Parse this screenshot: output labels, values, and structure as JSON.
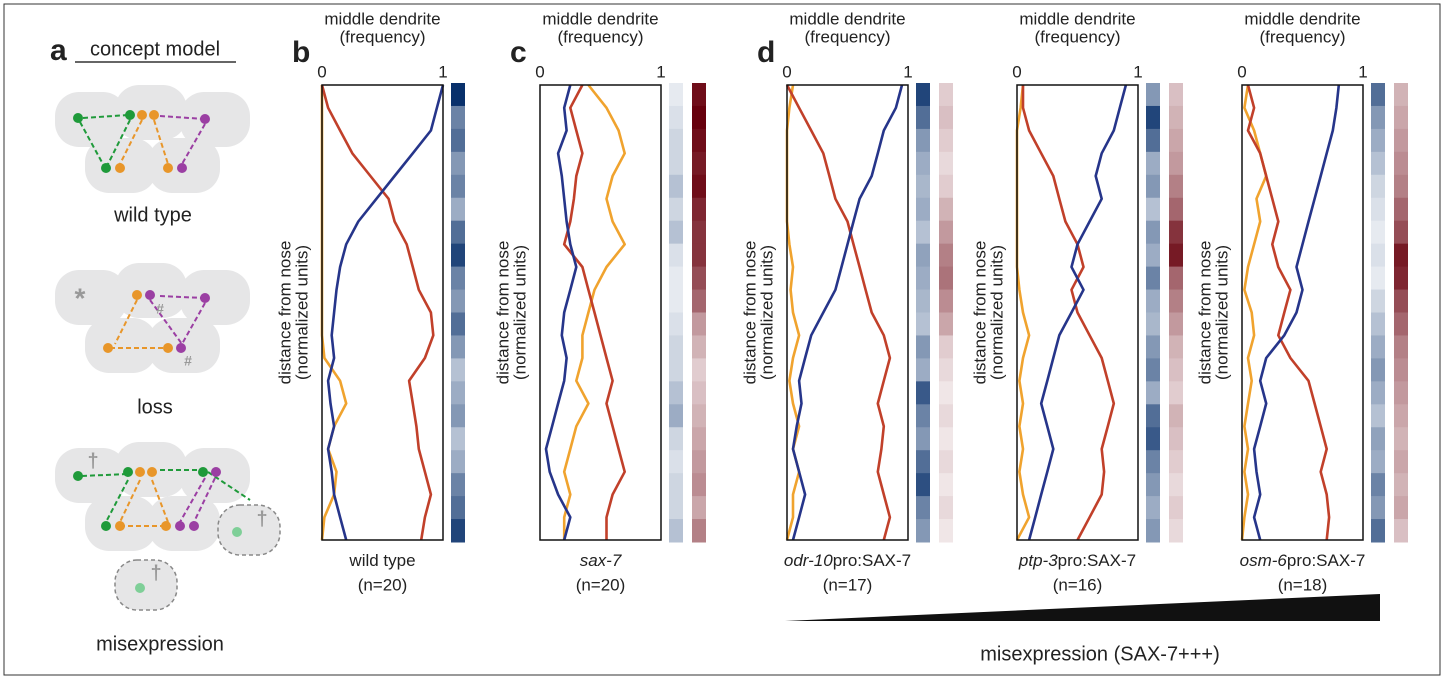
{
  "concept": {
    "panel": "a",
    "title": "concept model",
    "groups": [
      {
        "label": "wild type"
      },
      {
        "label": "loss"
      },
      {
        "label": "misexpression"
      }
    ],
    "markers": [
      "*",
      "#",
      "†"
    ]
  },
  "misexpression_axis": {
    "label": "misexpression (SAX-7+++)"
  },
  "chart_data": [
    {
      "type": "line",
      "panel": "b",
      "title": [
        "middle dendrite",
        "(frequency)"
      ],
      "ylabel": [
        "distance from nose",
        "(normalized units)"
      ],
      "xlim": [
        0,
        1
      ],
      "xticks": [
        0,
        1
      ],
      "caption": "wild type",
      "n": "(n=20)",
      "series": [
        {
          "color": "#f0a32e",
          "values": [
            0,
            0,
            0,
            0,
            0,
            0,
            0,
            0,
            0,
            0,
            0,
            0,
            0.02,
            0.15,
            0.2,
            0.1,
            0.05,
            0.12,
            0.1,
            0.02,
            0
          ]
        },
        {
          "color": "#c1402a",
          "values": [
            0,
            0.05,
            0.15,
            0.25,
            0.4,
            0.55,
            0.6,
            0.7,
            0.75,
            0.8,
            0.9,
            0.92,
            0.85,
            0.72,
            0.75,
            0.78,
            0.8,
            0.85,
            0.9,
            0.85,
            0.82
          ]
        },
        {
          "color": "#26358a",
          "values": [
            1,
            0.95,
            0.9,
            0.75,
            0.6,
            0.45,
            0.3,
            0.2,
            0.15,
            0.12,
            0.1,
            0.08,
            0.1,
            0.05,
            0.07,
            0.1,
            0.05,
            0.08,
            0.1,
            0.15,
            0.2
          ]
        }
      ],
      "heatmaps": [
        {
          "color": "#08306b",
          "values": [
            1,
            0.6,
            0.7,
            0.5,
            0.6,
            0.4,
            0.7,
            0.9,
            0.6,
            0.5,
            0.7,
            0.5,
            0.3,
            0.4,
            0.5,
            0.3,
            0.4,
            0.6,
            0.7,
            0.9
          ]
        }
      ]
    },
    {
      "type": "line",
      "panel": "c",
      "title": [
        "middle dendrite",
        "(frequency)"
      ],
      "ylabel": [
        "distance from nose",
        "(normalized units)"
      ],
      "xlim": [
        0,
        1
      ],
      "xticks": [
        0,
        1
      ],
      "caption_italic": "sax-7",
      "n": "(n=20)",
      "series": [
        {
          "color": "#f0a32e",
          "values": [
            0.4,
            0.55,
            0.65,
            0.7,
            0.6,
            0.55,
            0.6,
            0.7,
            0.55,
            0.45,
            0.4,
            0.35,
            0.35,
            0.3,
            0.4,
            0.3,
            0.25,
            0.2,
            0.25,
            0.2,
            0.2
          ]
        },
        {
          "color": "#c1402a",
          "values": [
            0.35,
            0.25,
            0.3,
            0.35,
            0.3,
            0.28,
            0.25,
            0.2,
            0.35,
            0.4,
            0.45,
            0.5,
            0.55,
            0.6,
            0.55,
            0.6,
            0.65,
            0.7,
            0.6,
            0.55,
            0.55
          ]
        },
        {
          "color": "#26358a",
          "values": [
            0.25,
            0.2,
            0.22,
            0.15,
            0.18,
            0.2,
            0.22,
            0.25,
            0.3,
            0.25,
            0.2,
            0.18,
            0.22,
            0.2,
            0.15,
            0.1,
            0.05,
            0.08,
            0.15,
            0.25,
            0.2
          ]
        }
      ],
      "heatmaps": [
        {
          "color": "#08306b",
          "values": [
            0.1,
            0.15,
            0.2,
            0.2,
            0.3,
            0.2,
            0.3,
            0.15,
            0.1,
            0.1,
            0.15,
            0.2,
            0.2,
            0.3,
            0.4,
            0.2,
            0.15,
            0.2,
            0.2,
            0.3
          ]
        },
        {
          "color": "#67000d",
          "values": [
            0.95,
            1,
            0.95,
            0.9,
            0.95,
            0.85,
            0.8,
            0.8,
            0.7,
            0.6,
            0.4,
            0.3,
            0.2,
            0.25,
            0.3,
            0.35,
            0.4,
            0.45,
            0.35,
            0.5
          ]
        }
      ]
    },
    {
      "type": "line",
      "panel": "d",
      "title": [
        "middle dendrite",
        "(frequency)"
      ],
      "ylabel": [
        "distance from nose",
        "(normalized units)"
      ],
      "xlim": [
        0,
        1
      ],
      "xticks": [
        0,
        1
      ],
      "caption_italic": "odr-10",
      "caption": "pro:SAX-7",
      "n": "(n=17)",
      "series": [
        {
          "color": "#f0a32e",
          "values": [
            0.05,
            0.02,
            0,
            0,
            0,
            0,
            0,
            0.02,
            0.05,
            0.03,
            0.05,
            0.1,
            0.05,
            0.02,
            0.05,
            0.1,
            0.05,
            0.1,
            0.05,
            0.05,
            0
          ]
        },
        {
          "color": "#c1402a",
          "values": [
            0,
            0.1,
            0.2,
            0.3,
            0.35,
            0.4,
            0.5,
            0.55,
            0.6,
            0.65,
            0.7,
            0.8,
            0.85,
            0.8,
            0.75,
            0.8,
            0.78,
            0.75,
            0.8,
            0.85,
            0.8
          ]
        },
        {
          "color": "#26358a",
          "values": [
            0.95,
            0.9,
            0.8,
            0.75,
            0.7,
            0.6,
            0.55,
            0.5,
            0.45,
            0.4,
            0.3,
            0.2,
            0.15,
            0.1,
            0.12,
            0.08,
            0.05,
            0.1,
            0.15,
            0.1,
            0.05
          ]
        }
      ],
      "heatmaps": [
        {
          "color": "#08306b",
          "values": [
            0.9,
            0.7,
            0.5,
            0.4,
            0.35,
            0.4,
            0.3,
            0.45,
            0.4,
            0.35,
            0.3,
            0.5,
            0.4,
            0.8,
            0.6,
            0.5,
            0.7,
            0.85,
            0.6,
            0.5
          ]
        },
        {
          "color": "#67000d",
          "values": [
            0.2,
            0.25,
            0.2,
            0.15,
            0.2,
            0.3,
            0.4,
            0.5,
            0.55,
            0.45,
            0.35,
            0.2,
            0.15,
            0.1,
            0.15,
            0.1,
            0.15,
            0.1,
            0.15,
            0.1
          ]
        }
      ]
    },
    {
      "type": "line",
      "title": [
        "middle dendrite",
        "(frequency)"
      ],
      "ylabel": [
        "distance from nose",
        "(normalized units)"
      ],
      "xlim": [
        0,
        1
      ],
      "xticks": [
        0,
        1
      ],
      "caption_italic": "ptp-3",
      "caption": "pro:SAX-7",
      "n": "(n=16)",
      "series": [
        {
          "color": "#f0a32e",
          "values": [
            0.05,
            0.03,
            0,
            0,
            0,
            0,
            0,
            0,
            0,
            0.02,
            0.05,
            0.1,
            0.05,
            0.02,
            0.05,
            0.02,
            0.05,
            0.02,
            0.05,
            0.1,
            0
          ]
        },
        {
          "color": "#c1402a",
          "values": [
            0.05,
            0.05,
            0.1,
            0.2,
            0.3,
            0.35,
            0.4,
            0.5,
            0.55,
            0.45,
            0.5,
            0.6,
            0.7,
            0.75,
            0.8,
            0.75,
            0.7,
            0.72,
            0.7,
            0.6,
            0.5
          ]
        },
        {
          "color": "#26358a",
          "values": [
            0.9,
            0.85,
            0.8,
            0.7,
            0.65,
            0.7,
            0.6,
            0.5,
            0.45,
            0.55,
            0.45,
            0.35,
            0.3,
            0.25,
            0.2,
            0.25,
            0.3,
            0.25,
            0.2,
            0.15,
            0.1
          ]
        }
      ],
      "heatmaps": [
        {
          "color": "#08306b",
          "values": [
            0.5,
            0.9,
            0.7,
            0.4,
            0.5,
            0.3,
            0.5,
            0.4,
            0.6,
            0.4,
            0.35,
            0.5,
            0.6,
            0.4,
            0.7,
            0.8,
            0.6,
            0.5,
            0.4,
            0.5
          ]
        },
        {
          "color": "#67000d",
          "values": [
            0.25,
            0.3,
            0.35,
            0.4,
            0.5,
            0.6,
            0.8,
            0.9,
            0.6,
            0.5,
            0.4,
            0.3,
            0.25,
            0.2,
            0.3,
            0.25,
            0.2,
            0.15,
            0.2,
            0.15
          ]
        }
      ]
    },
    {
      "type": "line",
      "title": [
        "middle dendrite",
        "(frequency)"
      ],
      "ylabel": [
        "distance from nose",
        "(normalized units)"
      ],
      "xlim": [
        0,
        1
      ],
      "xticks": [
        0,
        1
      ],
      "caption_italic": "osm-6",
      "caption": "pro:SAX-7",
      "n": "(n=18)",
      "series": [
        {
          "color": "#f0a32e",
          "values": [
            0.05,
            0.02,
            0.1,
            0.15,
            0.2,
            0.12,
            0.15,
            0.1,
            0.05,
            0.02,
            0.08,
            0.1,
            0.05,
            0.08,
            0.05,
            0.02,
            0.05,
            0.02,
            0.05,
            0.02,
            0
          ]
        },
        {
          "color": "#c1402a",
          "values": [
            0.05,
            0.1,
            0.05,
            0.15,
            0.2,
            0.25,
            0.3,
            0.25,
            0.3,
            0.4,
            0.35,
            0.3,
            0.4,
            0.55,
            0.6,
            0.65,
            0.7,
            0.65,
            0.7,
            0.72,
            0.7
          ]
        },
        {
          "color": "#26358a",
          "values": [
            0.8,
            0.78,
            0.75,
            0.7,
            0.65,
            0.6,
            0.55,
            0.5,
            0.45,
            0.5,
            0.45,
            0.35,
            0.2,
            0.15,
            0.2,
            0.15,
            0.1,
            0.12,
            0.15,
            0.1,
            0.15
          ]
        }
      ],
      "heatmaps": [
        {
          "color": "#08306b",
          "values": [
            0.7,
            0.5,
            0.4,
            0.3,
            0.2,
            0.15,
            0.1,
            0.15,
            0.1,
            0.2,
            0.3,
            0.4,
            0.5,
            0.4,
            0.3,
            0.45,
            0.4,
            0.6,
            0.5,
            0.7
          ]
        },
        {
          "color": "#67000d",
          "values": [
            0.3,
            0.35,
            0.4,
            0.45,
            0.5,
            0.6,
            0.7,
            0.9,
            0.85,
            0.7,
            0.6,
            0.5,
            0.45,
            0.4,
            0.35,
            0.3,
            0.35,
            0.3,
            0.35,
            0.25
          ]
        }
      ]
    }
  ]
}
